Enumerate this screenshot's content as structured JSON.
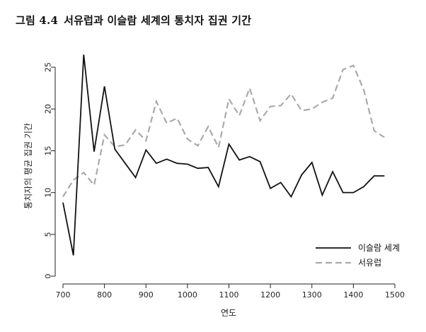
{
  "figure": {
    "number": "그림 4.4",
    "title": "서유럽과 이슬람 세계의 통치자 집권 기간"
  },
  "chart_data": {
    "type": "line",
    "xlabel": "연도",
    "ylabel": "통치자의 평균 집권 기간",
    "xlim": [
      700,
      1500
    ],
    "ylim": [
      0,
      27
    ],
    "x_ticks": [
      700,
      800,
      900,
      1000,
      1100,
      1200,
      1300,
      1400,
      1500
    ],
    "y_ticks": [
      0,
      5,
      10,
      15,
      20,
      25
    ],
    "grid": false,
    "legend_position": "bottom-right",
    "series": [
      {
        "name": "이슬람 세계",
        "style": "solid",
        "color": "#111111",
        "x": [
          700,
          725,
          750,
          775,
          800,
          825,
          850,
          875,
          900,
          925,
          950,
          975,
          1000,
          1025,
          1050,
          1075,
          1100,
          1125,
          1150,
          1175,
          1200,
          1225,
          1250,
          1275,
          1300,
          1325,
          1350,
          1375,
          1400,
          1425,
          1450,
          1475
        ],
        "values": [
          8.8,
          2.5,
          26.5,
          14.9,
          22.7,
          15.2,
          13.5,
          11.8,
          15.1,
          13.5,
          14.0,
          13.5,
          13.4,
          12.9,
          13.0,
          10.7,
          15.8,
          13.9,
          14.3,
          13.7,
          10.5,
          11.2,
          9.5,
          12.1,
          13.6,
          9.7,
          12.5,
          10.0,
          10.0,
          10.7,
          12.0,
          12.0
        ]
      },
      {
        "name": "서유럽",
        "style": "dashed",
        "color": "#aaaaaa",
        "x": [
          700,
          725,
          750,
          775,
          800,
          825,
          850,
          875,
          900,
          925,
          950,
          975,
          1000,
          1025,
          1050,
          1075,
          1100,
          1125,
          1150,
          1175,
          1200,
          1225,
          1250,
          1275,
          1300,
          1325,
          1350,
          1375,
          1400,
          1425,
          1450,
          1475
        ],
        "values": [
          9.5,
          11.5,
          12.4,
          10.9,
          16.9,
          15.5,
          15.7,
          17.5,
          16.2,
          20.9,
          18.3,
          18.9,
          16.4,
          15.6,
          17.9,
          15.4,
          21.2,
          19.2,
          22.5,
          18.6,
          20.3,
          20.4,
          21.8,
          19.8,
          20.0,
          20.8,
          21.3,
          24.7,
          25.2,
          22.3,
          17.4,
          16.6
        ]
      }
    ]
  }
}
